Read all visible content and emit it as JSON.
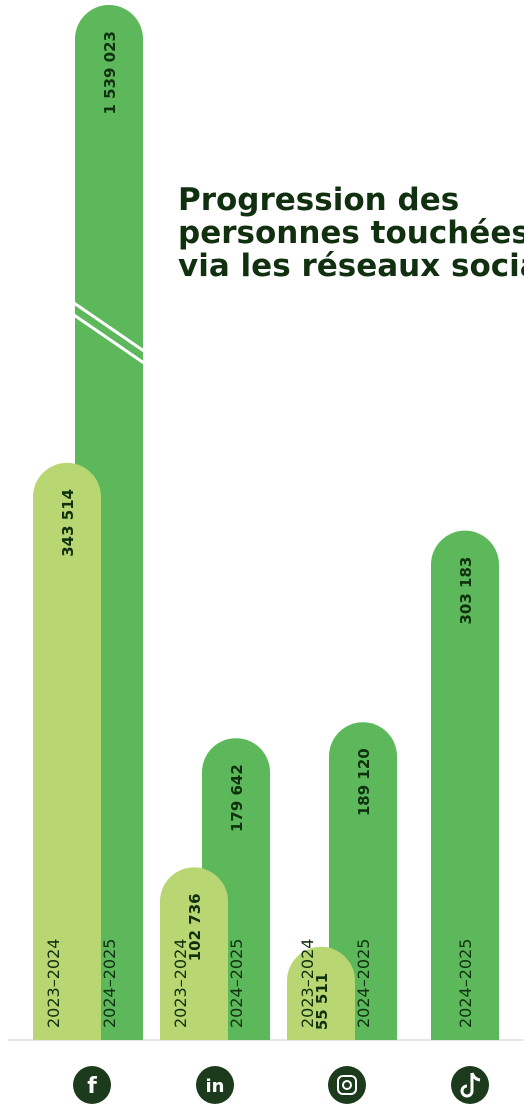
{
  "chart_data": {
    "type": "bar",
    "title_lines": [
      "Progression des",
      "personnes touchées",
      "via les réseaux sociaux"
    ],
    "categories": [
      null,
      null,
      null,
      null
    ],
    "series": [
      {
        "name": "2023–2024",
        "color": "#b8d672",
        "values": [
          343514,
          102736,
          55511,
          null
        ],
        "value_labels": [
          "343 514",
          "102 736",
          "55 511",
          null
        ]
      },
      {
        "name": "2024–2025",
        "color": "#5cb85a",
        "values": [
          1539023,
          179642,
          189120,
          303183
        ],
        "value_labels": [
          "1 539 023",
          "179 642",
          "189 120",
          "303 183"
        ]
      }
    ],
    "axis_break": true
  }
}
